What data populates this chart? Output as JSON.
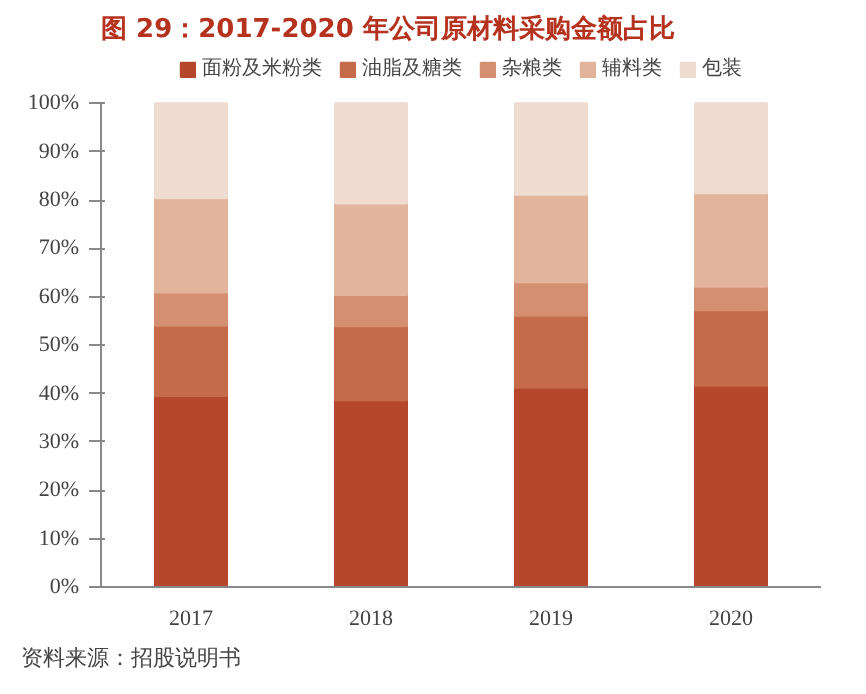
{
  "chart_data": {
    "type": "bar",
    "stacked": true,
    "title": "图 29：2017-2020 年公司原材料采购金额占比",
    "categories": [
      "2017",
      "2018",
      "2019",
      "2020"
    ],
    "series": [
      {
        "name": "面粉及米粉类",
        "color": "#b5472a",
        "values": [
          39.5,
          38.6,
          41.2,
          41.6
        ]
      },
      {
        "name": "油脂及糖类",
        "color": "#c56b4a",
        "values": [
          14.5,
          15.3,
          14.9,
          15.6
        ]
      },
      {
        "name": "杂粮类",
        "color": "#d48f70",
        "values": [
          6.9,
          6.5,
          6.9,
          4.9
        ]
      },
      {
        "name": "辅料类",
        "color": "#e2b49b",
        "values": [
          19.5,
          18.9,
          18.1,
          19.3
        ]
      },
      {
        "name": "包装",
        "color": "#f0dbd0",
        "values": [
          19.6,
          20.7,
          18.9,
          18.6
        ]
      }
    ],
    "ylim": [
      0,
      100
    ],
    "yticks": [
      {
        "value": 0,
        "label": "0%"
      },
      {
        "value": 10,
        "label": "10%"
      },
      {
        "value": 20,
        "label": "20%"
      },
      {
        "value": 30,
        "label": "30%"
      },
      {
        "value": 40,
        "label": "40%"
      },
      {
        "value": 50,
        "label": "50%"
      },
      {
        "value": 60,
        "label": "60%"
      },
      {
        "value": 70,
        "label": "70%"
      },
      {
        "value": 80,
        "label": "80%"
      },
      {
        "value": 90,
        "label": "90%"
      },
      {
        "value": 100,
        "label": "100%"
      }
    ],
    "grid": false,
    "legend": "top",
    "annotations": [
      "资料来源：招股说明书"
    ]
  }
}
